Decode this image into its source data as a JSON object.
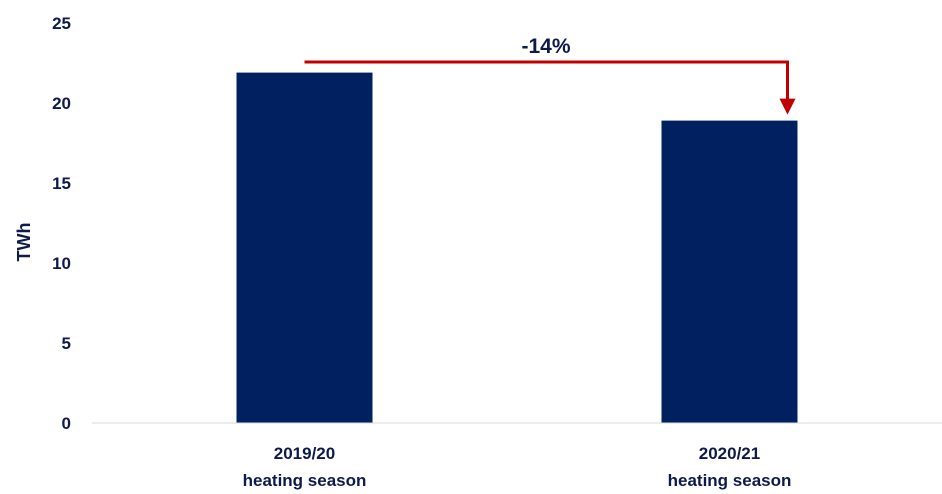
{
  "chart_data": {
    "type": "bar",
    "categories": [
      [
        "2019/20",
        "heating season"
      ],
      [
        "2020/21",
        "heating season"
      ]
    ],
    "values": [
      21.9,
      18.9
    ],
    "ylabel": "TWh",
    "ylim": [
      0,
      25
    ],
    "yticks": [
      0,
      5,
      10,
      15,
      20,
      25
    ],
    "grid": false,
    "legend": "none",
    "annotation": {
      "text": "-14%",
      "from_category": 0,
      "to_category": 1
    },
    "colors": {
      "bar": "#002060",
      "text": "#0d1b4c",
      "annotation": "#c00000",
      "axis": "#d9d9d9"
    }
  }
}
